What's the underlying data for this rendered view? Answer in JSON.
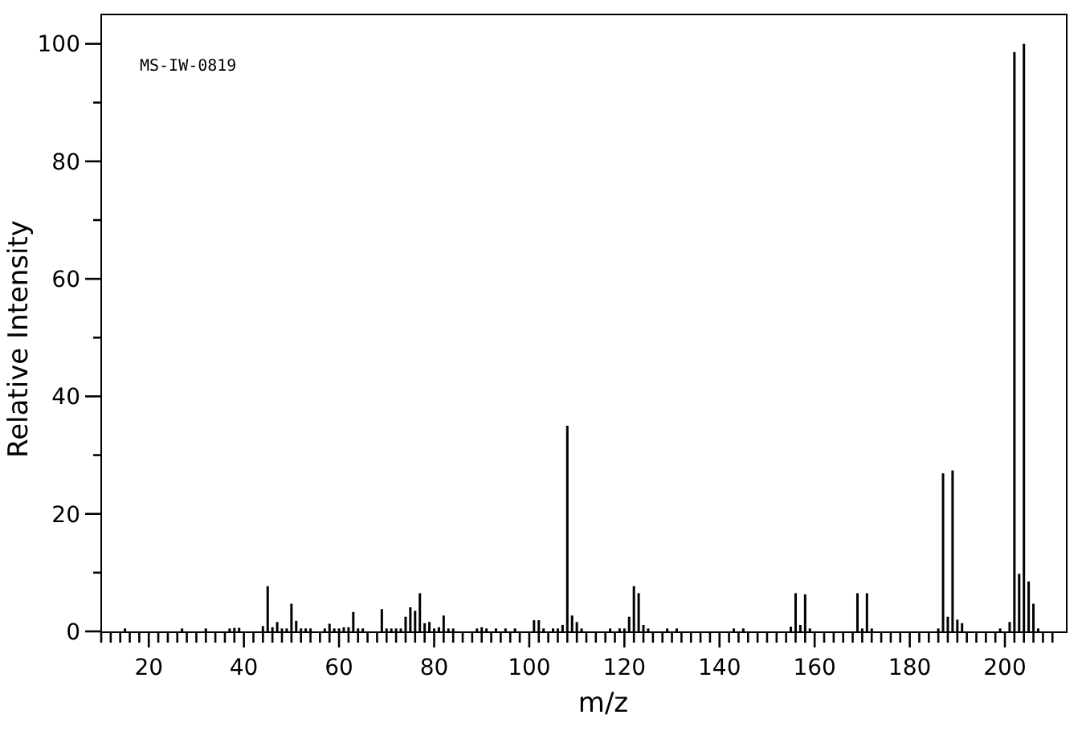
{
  "chart_data": {
    "type": "bar",
    "xlabel": "m/z",
    "ylabel": "Relative Intensity",
    "annotations": [
      "MS-IW-0819"
    ],
    "x": [
      15,
      27,
      32,
      37,
      38,
      39,
      44,
      45,
      46,
      47,
      48,
      49,
      50,
      51,
      52,
      53,
      54,
      57,
      58,
      59,
      60,
      61,
      62,
      63,
      64,
      65,
      69,
      70,
      71,
      72,
      73,
      74,
      75,
      76,
      77,
      78,
      79,
      80,
      81,
      82,
      83,
      84,
      89,
      90,
      91,
      93,
      95,
      97,
      101,
      102,
      103,
      105,
      106,
      107,
      108,
      109,
      110,
      111,
      117,
      119,
      120,
      121,
      122,
      123,
      124,
      125,
      129,
      131,
      143,
      145,
      155,
      156,
      157,
      158,
      159,
      169,
      170,
      171,
      172,
      186,
      187,
      188,
      189,
      190,
      191,
      199,
      201,
      202,
      203,
      204,
      205,
      206,
      207
    ],
    "values": [
      0.5,
      0.5,
      0.5,
      0.5,
      0.6,
      0.6,
      0.9,
      7.7,
      0.7,
      1.6,
      0.5,
      0.5,
      4.7,
      1.8,
      0.5,
      0.5,
      0.5,
      0.5,
      1.3,
      0.5,
      0.5,
      0.7,
      0.7,
      3.3,
      0.5,
      0.5,
      3.8,
      0.5,
      0.5,
      0.5,
      0.5,
      2.5,
      4.1,
      3.5,
      6.5,
      1.4,
      1.6,
      0.5,
      0.7,
      2.7,
      0.5,
      0.5,
      0.5,
      0.7,
      0.5,
      0.5,
      0.5,
      0.5,
      1.9,
      1.9,
      0.5,
      0.5,
      0.5,
      1.1,
      35,
      2.7,
      1.6,
      0.5,
      0.5,
      0.5,
      0.5,
      2.5,
      7.7,
      6.5,
      1.1,
      0.5,
      0.5,
      0.5,
      0.5,
      0.5,
      0.8,
      6.5,
      1.1,
      6.3,
      0.5,
      6.5,
      0.5,
      6.5,
      0.5,
      0.5,
      26.9,
      2.5,
      27.4,
      2,
      1.4,
      0.5,
      1.6,
      98.6,
      9.8,
      100,
      8.5,
      4.7,
      0.5
    ],
    "color": "#000000",
    "xlim": [
      10,
      213
    ],
    "ylim": [
      0,
      105
    ],
    "xticks": [
      {
        "value": 10,
        "label": null
      },
      {
        "value": 12,
        "label": null
      },
      {
        "value": 14,
        "label": null
      },
      {
        "value": 16,
        "label": null
      },
      {
        "value": 18,
        "label": null
      },
      20,
      {
        "value": 22,
        "label": null
      },
      {
        "value": 24,
        "label": null
      },
      {
        "value": 26,
        "label": null
      },
      {
        "value": 28,
        "label": null
      },
      {
        "value": 30,
        "label": null
      },
      {
        "value": 32,
        "label": null
      },
      {
        "value": 34,
        "label": null
      },
      {
        "value": 36,
        "label": null
      },
      {
        "value": 38,
        "label": null
      },
      40,
      {
        "value": 42,
        "label": null
      },
      {
        "value": 44,
        "label": null
      },
      {
        "value": 46,
        "label": null
      },
      {
        "value": 48,
        "label": null
      },
      {
        "value": 50,
        "label": null
      },
      {
        "value": 52,
        "label": null
      },
      {
        "value": 54,
        "label": null
      },
      {
        "value": 56,
        "label": null
      },
      {
        "value": 58,
        "label": null
      },
      60,
      {
        "value": 62,
        "label": null
      },
      {
        "value": 64,
        "label": null
      },
      {
        "value": 66,
        "label": null
      },
      {
        "value": 68,
        "label": null
      },
      {
        "value": 70,
        "label": null
      },
      {
        "value": 72,
        "label": null
      },
      {
        "value": 74,
        "label": null
      },
      {
        "value": 76,
        "label": null
      },
      {
        "value": 78,
        "label": null
      },
      80,
      {
        "value": 82,
        "label": null
      },
      {
        "value": 84,
        "label": null
      },
      {
        "value": 86,
        "label": null
      },
      {
        "value": 88,
        "label": null
      },
      {
        "value": 90,
        "label": null
      },
      {
        "value": 92,
        "label": null
      },
      {
        "value": 94,
        "label": null
      },
      {
        "value": 96,
        "label": null
      },
      {
        "value": 98,
        "label": null
      },
      100,
      {
        "value": 102,
        "label": null
      },
      {
        "value": 104,
        "label": null
      },
      {
        "value": 106,
        "label": null
      },
      {
        "value": 108,
        "label": null
      },
      {
        "value": 110,
        "label": null
      },
      {
        "value": 112,
        "label": null
      },
      {
        "value": 114,
        "label": null
      },
      {
        "value": 116,
        "label": null
      },
      {
        "value": 118,
        "label": null
      },
      120,
      {
        "value": 122,
        "label": null
      },
      {
        "value": 124,
        "label": null
      },
      {
        "value": 126,
        "label": null
      },
      {
        "value": 128,
        "label": null
      },
      {
        "value": 130,
        "label": null
      },
      {
        "value": 132,
        "label": null
      },
      {
        "value": 134,
        "label": null
      },
      {
        "value": 136,
        "label": null
      },
      {
        "value": 138,
        "label": null
      },
      140,
      {
        "value": 142,
        "label": null
      },
      {
        "value": 144,
        "label": null
      },
      {
        "value": 146,
        "label": null
      },
      {
        "value": 148,
        "label": null
      },
      {
        "value": 150,
        "label": null
      },
      {
        "value": 152,
        "label": null
      },
      {
        "value": 154,
        "label": null
      },
      {
        "value": 156,
        "label": null
      },
      {
        "value": 158,
        "label": null
      },
      160,
      {
        "value": 162,
        "label": null
      },
      {
        "value": 164,
        "label": null
      },
      {
        "value": 166,
        "label": null
      },
      {
        "value": 168,
        "label": null
      },
      {
        "value": 170,
        "label": null
      },
      {
        "value": 172,
        "label": null
      },
      {
        "value": 174,
        "label": null
      },
      {
        "value": 176,
        "label": null
      },
      {
        "value": 178,
        "label": null
      },
      180,
      {
        "value": 182,
        "label": null
      },
      {
        "value": 184,
        "label": null
      },
      {
        "value": 186,
        "label": null
      },
      {
        "value": 188,
        "label": null
      },
      {
        "value": 190,
        "label": null
      },
      {
        "value": 192,
        "label": null
      },
      {
        "value": 194,
        "label": null
      },
      {
        "value": 196,
        "label": null
      },
      {
        "value": 198,
        "label": null
      },
      200,
      {
        "value": 202,
        "label": null
      },
      {
        "value": 204,
        "label": null
      },
      {
        "value": 206,
        "label": null
      },
      {
        "value": 208,
        "label": null
      },
      {
        "value": 210,
        "label": null
      }
    ],
    "yticks": [
      0,
      {
        "value": 10,
        "label": null
      },
      20,
      {
        "value": 30,
        "label": null
      },
      40,
      {
        "value": 50,
        "label": null
      },
      60,
      {
        "value": 70,
        "label": null
      },
      80,
      {
        "value": 90,
        "label": null
      },
      100
    ]
  }
}
